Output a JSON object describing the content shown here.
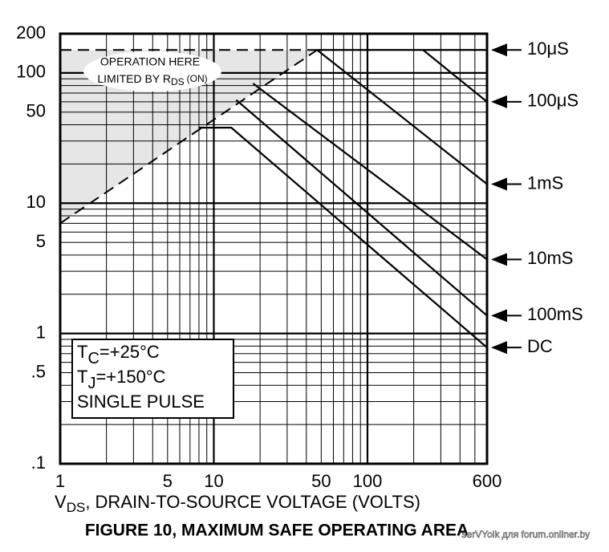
{
  "chart_data": {
    "type": "line",
    "title": "FIGURE 10, MAXIMUM SAFE OPERATING AREA",
    "x_label": [
      "V",
      "DS",
      ", DRAIN-TO-SOURCE VOLTAGE (VOLTS)"
    ],
    "log_x": true,
    "log_y": true,
    "grid": true,
    "xlim": [
      1,
      600
    ],
    "ylim": [
      0.1,
      200
    ],
    "xticks": [
      1,
      5,
      10,
      50,
      100,
      600
    ],
    "yticks": [
      {
        "value": 0.1,
        "label": ".1"
      },
      {
        "value": 0.5,
        "label": ".5"
      },
      1,
      5,
      10,
      50,
      100,
      200
    ],
    "xgrid": [
      2,
      3,
      4,
      5,
      6,
      7,
      8,
      9,
      10,
      20,
      30,
      40,
      50,
      60,
      70,
      80,
      90,
      100,
      200,
      300,
      400,
      500
    ],
    "ygrid": [
      0.2,
      0.3,
      0.4,
      0.5,
      0.6,
      0.7,
      0.8,
      0.9,
      1,
      2,
      3,
      4,
      5,
      6,
      7,
      8,
      9,
      10,
      20,
      30,
      40,
      50,
      60,
      70,
      80,
      90,
      100
    ],
    "series": [
      {
        "name": "10μS",
        "color": "#000000",
        "x": [
          47,
          600
        ],
        "values": [
          150,
          150
        ]
      },
      {
        "name": "100μS",
        "color": "#000000",
        "x": [
          230,
          600
        ],
        "values": [
          150,
          60
        ]
      },
      {
        "name": "1mS",
        "color": "#000000",
        "x": [
          47,
          600
        ],
        "values": [
          150,
          14
        ]
      },
      {
        "name": "10mS",
        "color": "#000000",
        "x": [
          18,
          600
        ],
        "values": [
          83,
          3.7
        ]
      },
      {
        "name": "100mS",
        "color": "#000000",
        "x": [
          14,
          600
        ],
        "values": [
          62,
          1.37
        ]
      },
      {
        "name": "DC",
        "color": "#000000",
        "x": [
          8,
          13,
          600
        ],
        "values": [
          38,
          38,
          0.78
        ]
      }
    ],
    "limit_lines": [
      {
        "x": [
          1,
          47
        ],
        "values": [
          7,
          150
        ]
      },
      {
        "x": [
          1,
          47
        ],
        "values": [
          150,
          150
        ]
      }
    ],
    "shade_color": "#e6e6e6",
    "annotation": [
      "OPERATION HERE",
      "LIMITED BY R",
      "DS",
      "(ON)"
    ],
    "conditions": [
      [
        "T",
        "C",
        "=+25°C"
      ],
      [
        "T",
        "J",
        "=+150°C"
      ],
      [
        "SINGLE PULSE"
      ]
    ],
    "watermark": "serVYolk для forum.onliner.by"
  }
}
